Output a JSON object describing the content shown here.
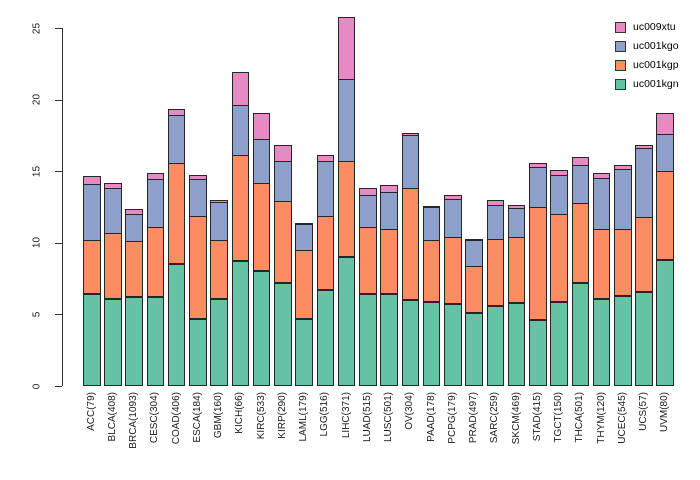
{
  "chart_data": {
    "type": "bar",
    "stacked": true,
    "title": "",
    "xlabel": "",
    "ylabel": "",
    "grid": false,
    "categories": [
      "ACC(79)",
      "BLCA(408)",
      "BRCA(1093)",
      "CESC(304)",
      "COAD(406)",
      "ESCA(184)",
      "GBM(160)",
      "KICH(66)",
      "KIRC(533)",
      "KIRP(290)",
      "LAML(179)",
      "LGG(516)",
      "LIHC(371)",
      "LUAD(515)",
      "LUSC(501)",
      "OV(304)",
      "PAAD(178)",
      "PCPG(179)",
      "PRAD(497)",
      "SARC(259)",
      "SKCM(469)",
      "STAD(415)",
      "TGCT(150)",
      "THCA(501)",
      "THYM(120)",
      "UCEC(545)",
      "UCS(57)",
      "UVM(80)"
    ],
    "series": [
      {
        "name": "uc001kgn",
        "color": "#66C2A5",
        "values": [
          6.4,
          6.1,
          6.2,
          6.2,
          8.5,
          4.7,
          6.1,
          8.7,
          8.0,
          7.2,
          4.7,
          6.7,
          9.0,
          6.4,
          6.4,
          6.0,
          5.9,
          5.7,
          5.1,
          5.6,
          5.8,
          4.6,
          5.9,
          7.2,
          6.1,
          6.3,
          6.6,
          8.8
        ]
      },
      {
        "name": "uc001kgp",
        "color": "#FC8D62",
        "values": [
          3.8,
          4.6,
          3.9,
          4.9,
          7.1,
          7.2,
          4.1,
          7.4,
          6.2,
          5.7,
          4.8,
          5.2,
          6.7,
          4.7,
          4.6,
          7.8,
          4.3,
          4.7,
          3.3,
          4.7,
          4.6,
          7.9,
          6.1,
          5.6,
          4.9,
          4.7,
          5.2,
          6.2
        ]
      },
      {
        "name": "uc001kgo",
        "color": "#8DA0CB",
        "values": [
          4.0,
          3.2,
          2.0,
          3.4,
          3.4,
          2.6,
          2.7,
          3.6,
          3.1,
          2.9,
          1.9,
          3.9,
          5.8,
          2.3,
          2.6,
          3.8,
          2.4,
          2.7,
          1.9,
          2.4,
          2.1,
          2.9,
          2.8,
          2.7,
          3.6,
          4.2,
          4.9,
          2.7
        ]
      },
      {
        "name": "uc009xtu",
        "color": "#E78AC3",
        "values": [
          0.6,
          0.4,
          0.4,
          0.5,
          0.5,
          0.4,
          0.2,
          2.4,
          1.9,
          1.2,
          0.1,
          0.5,
          4.4,
          0.6,
          0.6,
          0.2,
          0.1,
          0.4,
          0.1,
          0.4,
          0.3,
          0.3,
          0.4,
          0.6,
          0.4,
          0.4,
          0.3,
          1.5
        ]
      }
    ],
    "legend": {
      "position": "top-right",
      "order": [
        "uc009xtu",
        "uc001kgo",
        "uc001kgp",
        "uc001kgn"
      ]
    },
    "y_axis": {
      "range": [
        0,
        25
      ],
      "ticks": [
        0,
        5,
        10,
        15,
        20,
        25
      ]
    }
  }
}
